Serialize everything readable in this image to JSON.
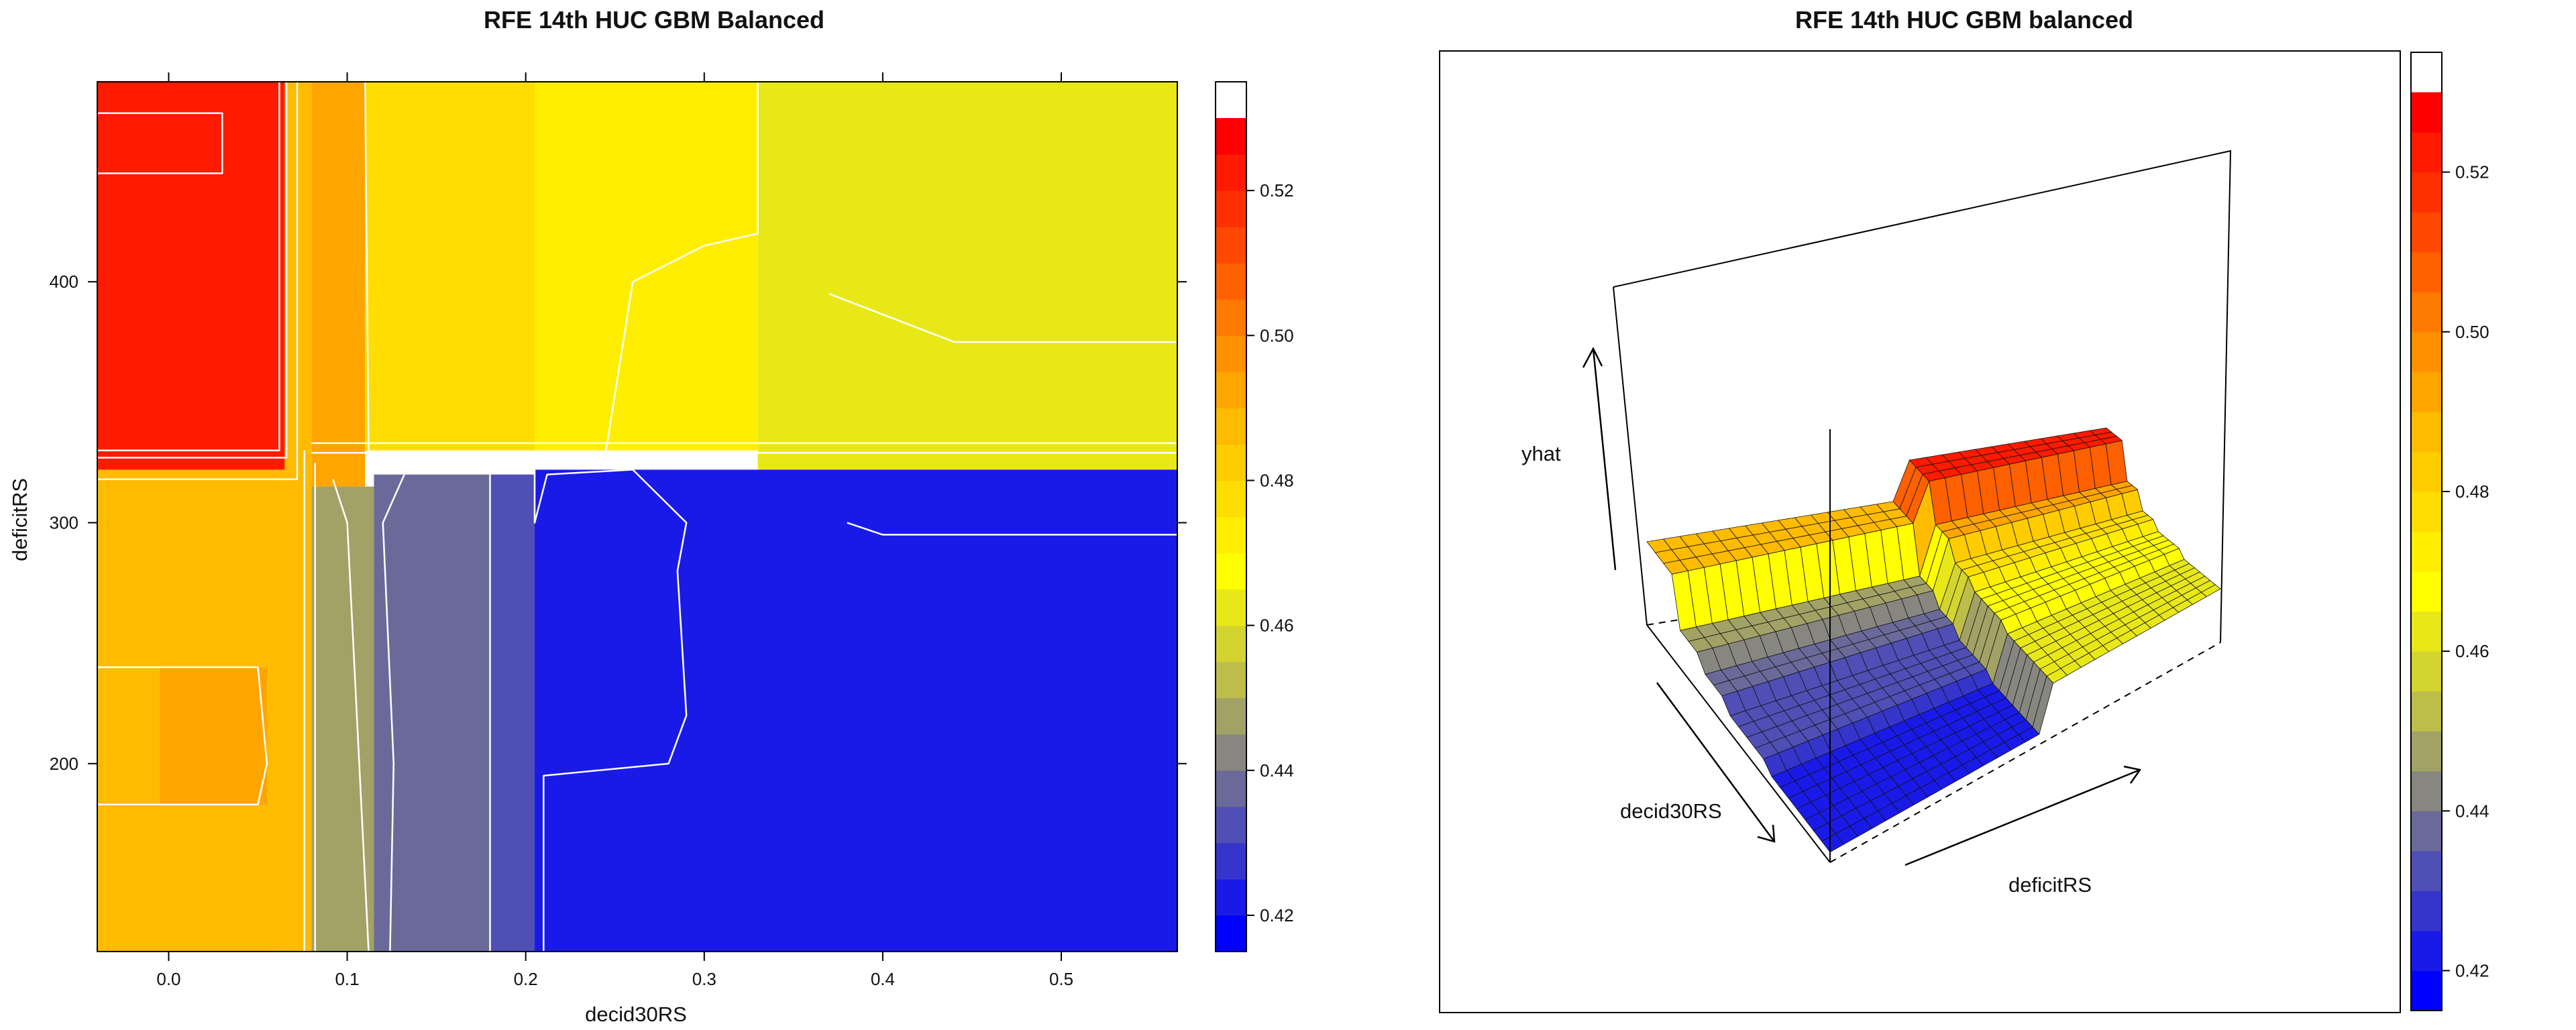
{
  "chart_data": [
    {
      "type": "heatmap",
      "title": "RFE 14th HUC GBM Balanced",
      "xlabel": "decid30RS",
      "ylabel": "deficitRS",
      "xlim": [
        -0.04,
        0.565
      ],
      "ylim": [
        122,
        483
      ],
      "x_ticks": [
        "0.0",
        "0.1",
        "0.2",
        "0.3",
        "0.4",
        "0.5"
      ],
      "y_ticks": [
        "200",
        "300",
        "400"
      ],
      "colorkey": {
        "levels": [
          0.415,
          0.42,
          0.425,
          0.43,
          0.435,
          0.44,
          0.445,
          0.45,
          0.455,
          0.46,
          0.465,
          0.47,
          0.475,
          0.48,
          0.485,
          0.49,
          0.495,
          0.5,
          0.505,
          0.51,
          0.515,
          0.52,
          0.525,
          0.53,
          0.535
        ],
        "colors": [
          "#0000FF",
          "#1A1AE8",
          "#3535CC",
          "#4F4FB5",
          "#6A6A9A",
          "#878780",
          "#A2A266",
          "#BDBD4A",
          "#D4D430",
          "#E8E818",
          "#FFFF00",
          "#FFEE00",
          "#FFDD00",
          "#FFCC00",
          "#FFBB00",
          "#FFA500",
          "#FF9000",
          "#FF7A00",
          "#FF6000",
          "#FF4800",
          "#FF3000",
          "#FF1A00",
          "#FF0000"
        ],
        "ticks": [
          "0.42",
          "0.44",
          "0.46",
          "0.48",
          "0.50",
          "0.52"
        ]
      },
      "regions": [
        {
          "x": [
            -0.04,
            0.065
          ],
          "y": [
            322,
            483
          ],
          "z": 0.522
        },
        {
          "x": [
            -0.04,
            0.065
          ],
          "y": [
            122,
            322
          ],
          "z": 0.488
        },
        {
          "x": [
            -0.005,
            0.055
          ],
          "y": [
            183,
            240
          ],
          "z": 0.493
        },
        {
          "x": [
            0.065,
            0.08
          ],
          "y": [
            122,
            483
          ],
          "z": 0.488
        },
        {
          "x": [
            0.08,
            0.11
          ],
          "y": [
            315,
            483
          ],
          "z": 0.493
        },
        {
          "x": [
            0.11,
            0.205
          ],
          "y": [
            330,
            483
          ],
          "z": 0.478
        },
        {
          "x": [
            0.205,
            0.33
          ],
          "y": [
            330,
            483
          ],
          "z": 0.47
        },
        {
          "x": [
            0.33,
            0.565
          ],
          "y": [
            322,
            483
          ],
          "z": 0.463
        },
        {
          "x": [
            0.08,
            0.115
          ],
          "y": [
            122,
            315
          ],
          "z": 0.448
        },
        {
          "x": [
            0.115,
            0.18
          ],
          "y": [
            122,
            320
          ],
          "z": 0.438
        },
        {
          "x": [
            0.18,
            0.205
          ],
          "y": [
            122,
            320
          ],
          "z": 0.432
        },
        {
          "x": [
            0.205,
            0.565
          ],
          "y": [
            122,
            322
          ],
          "z": 0.424
        }
      ]
    },
    {
      "type": "surface",
      "title": "RFE 14th HUC GBM balanced",
      "xlabel": "decid30RS",
      "ylabel": "deficitRS",
      "zlabel": "yhat",
      "colorkey": {
        "ticks": [
          "0.42",
          "0.44",
          "0.46",
          "0.48",
          "0.50",
          "0.52"
        ]
      }
    }
  ]
}
